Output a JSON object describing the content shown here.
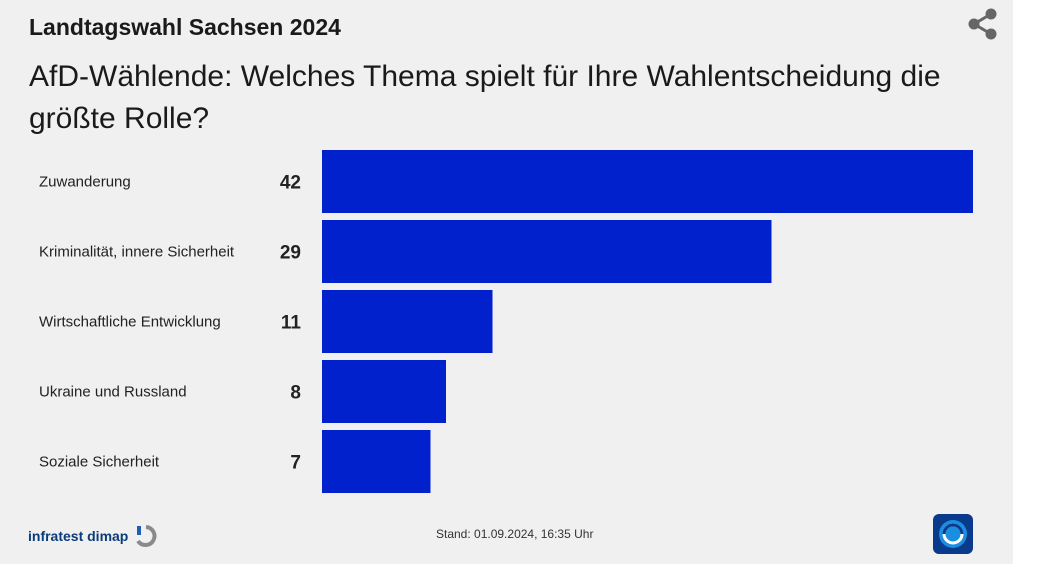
{
  "header": {
    "kicker": "Landtagswahl Sachsen 2024",
    "headline": "AfD-Wählende: Welches Thema spielt für Ihre Wahlentscheidung die größte Rolle?"
  },
  "icons": {
    "share": "share-icon",
    "logo": "tagesschau-logo-icon",
    "brand_mark": "infratest-dimap-logo-icon"
  },
  "colors": {
    "bar": "#0021cc",
    "background": "#f0f0f0"
  },
  "chart_data": {
    "type": "bar",
    "orientation": "horizontal",
    "title": "AfD-Wählende: Welches Thema spielt für Ihre Wahlentscheidung die größte Rolle?",
    "categories": [
      "Zuwanderung",
      "Kriminalität, innere Sicherheit",
      "Wirtschaftliche Entwicklung",
      "Ukraine und Russland",
      "Soziale Sicherheit"
    ],
    "values": [
      42,
      29,
      11,
      8,
      7
    ],
    "xlim": [
      0,
      42
    ],
    "grid": false,
    "legend": false
  },
  "footer": {
    "source": "infratest dimap",
    "stand": "Stand:  01.09.2024, 16:35 Uhr"
  }
}
